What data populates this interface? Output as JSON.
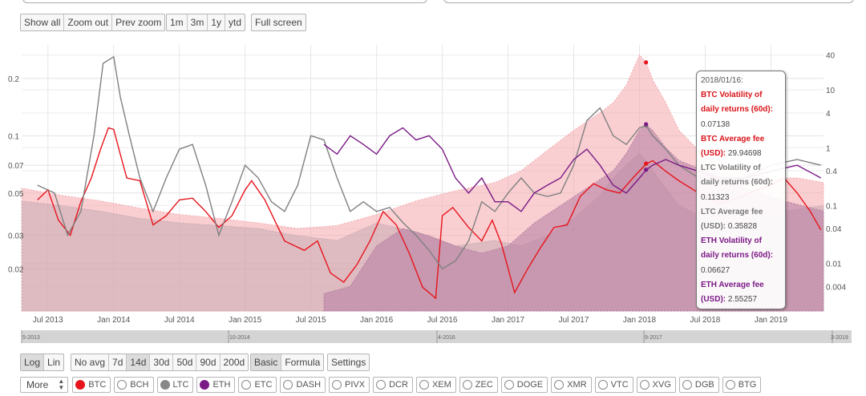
{
  "toolbar": {
    "zoom_buttons": [
      "Show all",
      "Zoom out",
      "Prev zoom"
    ],
    "range_buttons": [
      "1m",
      "3m",
      "1y",
      "ytd"
    ],
    "fullscreen": "Full screen"
  },
  "controls": {
    "scale_buttons": [
      "Log",
      "Lin"
    ],
    "scale_active": 0,
    "avg_buttons": [
      "No avg",
      "7d",
      "14d",
      "30d",
      "50d",
      "90d",
      "200d"
    ],
    "avg_active": 2,
    "mode_buttons": [
      "Basic",
      "Formula"
    ],
    "mode_active": 0,
    "settings": "Settings",
    "more": "More"
  },
  "coins": [
    {
      "label": "BTC",
      "active": true,
      "color": "#e8141c"
    },
    {
      "label": "BCH",
      "active": false,
      "color": ""
    },
    {
      "label": "LTC",
      "active": true,
      "color": "#888888"
    },
    {
      "label": "ETH",
      "active": true,
      "color": "#7a1a86"
    },
    {
      "label": "ETC",
      "active": false,
      "color": ""
    },
    {
      "label": "DASH",
      "active": false,
      "color": ""
    },
    {
      "label": "PIVX",
      "active": false,
      "color": ""
    },
    {
      "label": "DCR",
      "active": false,
      "color": ""
    },
    {
      "label": "XEM",
      "active": false,
      "color": ""
    },
    {
      "label": "ZEC",
      "active": false,
      "color": ""
    },
    {
      "label": "DOGE",
      "active": false,
      "color": ""
    },
    {
      "label": "XMR",
      "active": false,
      "color": ""
    },
    {
      "label": "VTC",
      "active": false,
      "color": ""
    },
    {
      "label": "XVG",
      "active": false,
      "color": ""
    },
    {
      "label": "DGB",
      "active": false,
      "color": ""
    },
    {
      "label": "BTG",
      "active": false,
      "color": ""
    }
  ],
  "tooltip": {
    "date": "2018/01/16:",
    "entries": [
      {
        "label": "BTC Volatility of daily returns (60d)",
        "value": "0.07138",
        "color": "red"
      },
      {
        "label": "BTC Average fee (USD)",
        "value": "29.94698",
        "color": "red"
      },
      {
        "label": "LTC Volatility of daily returns (60d)",
        "value": "0.11323",
        "color": "gray"
      },
      {
        "label": "LTC Average fee (USD)",
        "value": "0.35828",
        "color": "gray"
      },
      {
        "label": "ETH Volatility of daily returns (60d)",
        "value": "0.06627",
        "color": "purple"
      },
      {
        "label": "ETH Average fee (USD)",
        "value": "2.55257",
        "color": "purple"
      }
    ]
  },
  "chart_data": {
    "type": "line",
    "x_ticks": [
      "Jul 2013",
      "Jan 2014",
      "Jul 2014",
      "Jan 2015",
      "Jul 2015",
      "Jan 2016",
      "Jul 2016",
      "Jan 2017",
      "Jul 2017",
      "Jan 2018",
      "Jul 2018",
      "Jan 2019"
    ],
    "x_range": [
      2013.3,
      2019.4
    ],
    "y_left": {
      "scale": "log",
      "range": [
        0.012,
        0.3
      ],
      "ticks": [
        "0.2",
        "0.1",
        "0.07",
        "0.05",
        "0.03",
        "0.02"
      ]
    },
    "y_right": {
      "scale": "log",
      "range": [
        0.0015,
        60
      ],
      "ticks": [
        "40",
        "10",
        "4",
        "1",
        "0.4",
        "0.1",
        "0.04",
        "0.01",
        "0.004"
      ]
    },
    "navigator_labels": [
      "5-2013",
      "10-2014",
      "4-2016",
      "9-2017",
      "3-2019"
    ],
    "series": [
      {
        "name": "BTC Volatility of daily returns (60d)",
        "axis": "left",
        "style": "line",
        "color": "#e8141c",
        "x": [
          2013.42,
          2013.5,
          2013.58,
          2013.67,
          2013.75,
          2013.83,
          2013.9,
          2013.96,
          2014.0,
          2014.05,
          2014.1,
          2014.2,
          2014.3,
          2014.4,
          2014.5,
          2014.6,
          2014.7,
          2014.8,
          2014.9,
          2015.0,
          2015.05,
          2015.15,
          2015.3,
          2015.45,
          2015.55,
          2015.65,
          2015.75,
          2015.85,
          2015.95,
          2016.05,
          2016.15,
          2016.25,
          2016.35,
          2016.45,
          2016.5,
          2016.58,
          2016.7,
          2016.8,
          2016.88,
          2016.95,
          2017.05,
          2017.15,
          2017.25,
          2017.35,
          2017.45,
          2017.55,
          2017.65,
          2017.75,
          2017.85,
          2017.95,
          2018.05,
          2018.1,
          2018.2,
          2018.3,
          2018.45,
          2018.6,
          2018.75,
          2018.9,
          2019.0,
          2019.1,
          2019.2,
          2019.3,
          2019.38
        ],
        "y": [
          0.046,
          0.052,
          0.036,
          0.03,
          0.045,
          0.06,
          0.085,
          0.11,
          0.108,
          0.08,
          0.06,
          0.058,
          0.034,
          0.038,
          0.046,
          0.047,
          0.04,
          0.033,
          0.038,
          0.052,
          0.058,
          0.046,
          0.028,
          0.025,
          0.028,
          0.019,
          0.017,
          0.021,
          0.028,
          0.04,
          0.034,
          0.024,
          0.016,
          0.014,
          0.038,
          0.042,
          0.033,
          0.028,
          0.036,
          0.027,
          0.015,
          0.02,
          0.026,
          0.033,
          0.034,
          0.048,
          0.056,
          0.052,
          0.05,
          0.06,
          0.071,
          0.074,
          0.065,
          0.058,
          0.05,
          0.044,
          0.047,
          0.052,
          0.055,
          0.06,
          0.05,
          0.04,
          0.032
        ]
      },
      {
        "name": "BTC Average fee (USD)",
        "axis": "right",
        "style": "area",
        "color": "#f4a7ad",
        "x": [
          2013.3,
          2013.6,
          2013.9,
          2014.2,
          2014.5,
          2014.8,
          2015.1,
          2015.4,
          2015.7,
          2016.0,
          2016.3,
          2016.6,
          2016.9,
          2017.1,
          2017.3,
          2017.5,
          2017.7,
          2017.8,
          2017.9,
          2017.97,
          2018.0,
          2018.05,
          2018.1,
          2018.2,
          2018.3,
          2018.45,
          2018.6,
          2018.8,
          2019.0,
          2019.2,
          2019.4
        ],
        "y": [
          0.2,
          0.15,
          0.12,
          0.09,
          0.07,
          0.06,
          0.05,
          0.04,
          0.045,
          0.07,
          0.12,
          0.18,
          0.25,
          0.4,
          0.9,
          2.0,
          4.0,
          6.0,
          12.0,
          28.0,
          40.0,
          30.0,
          15.0,
          6.0,
          2.0,
          0.9,
          0.6,
          0.4,
          0.3,
          0.3,
          0.25
        ]
      },
      {
        "name": "LTC Volatility of daily returns (60d)",
        "axis": "left",
        "style": "line",
        "color": "#808080",
        "x": [
          2013.42,
          2013.55,
          2013.65,
          2013.75,
          2013.85,
          2013.92,
          2014.0,
          2014.05,
          2014.12,
          2014.2,
          2014.3,
          2014.4,
          2014.5,
          2014.6,
          2014.7,
          2014.8,
          2014.9,
          2015.0,
          2015.1,
          2015.2,
          2015.3,
          2015.4,
          2015.5,
          2015.6,
          2015.7,
          2015.8,
          2015.9,
          2016.0,
          2016.1,
          2016.2,
          2016.3,
          2016.4,
          2016.5,
          2016.6,
          2016.7,
          2016.8,
          2016.9,
          2017.0,
          2017.1,
          2017.2,
          2017.3,
          2017.4,
          2017.5,
          2017.6,
          2017.7,
          2017.8,
          2017.9,
          2018.0,
          2018.05,
          2018.1,
          2018.2,
          2018.3,
          2018.45,
          2018.6,
          2018.8,
          2019.0,
          2019.2,
          2019.38
        ],
        "y": [
          0.055,
          0.05,
          0.03,
          0.04,
          0.1,
          0.24,
          0.26,
          0.16,
          0.1,
          0.06,
          0.04,
          0.06,
          0.085,
          0.09,
          0.055,
          0.03,
          0.045,
          0.07,
          0.06,
          0.045,
          0.04,
          0.055,
          0.1,
          0.095,
          0.06,
          0.04,
          0.045,
          0.04,
          0.042,
          0.035,
          0.03,
          0.025,
          0.02,
          0.022,
          0.028,
          0.045,
          0.04,
          0.05,
          0.06,
          0.05,
          0.048,
          0.05,
          0.07,
          0.12,
          0.14,
          0.1,
          0.09,
          0.11,
          0.113,
          0.1,
          0.085,
          0.07,
          0.06,
          0.055,
          0.06,
          0.07,
          0.075,
          0.07
        ]
      },
      {
        "name": "ETH Volatility of daily returns (60d)",
        "axis": "left",
        "style": "line",
        "color": "#7a1a86",
        "x": [
          2015.6,
          2015.7,
          2015.8,
          2015.9,
          2016.0,
          2016.1,
          2016.2,
          2016.3,
          2016.4,
          2016.5,
          2016.6,
          2016.7,
          2016.8,
          2016.9,
          2017.0,
          2017.1,
          2017.2,
          2017.3,
          2017.4,
          2017.5,
          2017.6,
          2017.7,
          2017.8,
          2017.9,
          2018.0,
          2018.05,
          2018.1,
          2018.2,
          2018.3,
          2018.45,
          2018.6,
          2018.8,
          2019.0,
          2019.2,
          2019.38
        ],
        "y": [
          0.09,
          0.08,
          0.1,
          0.09,
          0.08,
          0.1,
          0.11,
          0.095,
          0.1,
          0.085,
          0.06,
          0.05,
          0.06,
          0.045,
          0.045,
          0.04,
          0.05,
          0.055,
          0.06,
          0.075,
          0.085,
          0.07,
          0.055,
          0.05,
          0.06,
          0.066,
          0.07,
          0.075,
          0.07,
          0.065,
          0.06,
          0.06,
          0.065,
          0.07,
          0.06
        ]
      },
      {
        "name": "LTC Average fee (USD)",
        "axis": "right",
        "style": "area",
        "color": "#c9aab2",
        "x": [
          2013.3,
          2013.6,
          2013.9,
          2014.2,
          2014.5,
          2014.8,
          2015.1,
          2015.4,
          2015.7,
          2016.0,
          2016.3,
          2016.6,
          2016.9,
          2017.1,
          2017.3,
          2017.5,
          2017.7,
          2017.8,
          2017.9,
          2018.0,
          2018.05,
          2018.1,
          2018.2,
          2018.3,
          2018.5,
          2018.8,
          2019.1,
          2019.4
        ],
        "y": [
          0.12,
          0.1,
          0.08,
          0.06,
          0.05,
          0.045,
          0.04,
          0.03,
          0.025,
          0.05,
          0.035,
          0.02,
          0.025,
          0.02,
          0.03,
          0.06,
          0.15,
          0.3,
          0.5,
          0.8,
          0.6,
          0.4,
          0.2,
          0.1,
          0.06,
          0.05,
          0.08,
          0.1
        ]
      },
      {
        "name": "ETH Average fee (USD)",
        "axis": "right",
        "style": "area",
        "color": "#b57ca0",
        "x": [
          2015.6,
          2015.8,
          2016.0,
          2016.2,
          2016.4,
          2016.6,
          2016.8,
          2017.0,
          2017.2,
          2017.4,
          2017.6,
          2017.8,
          2017.9,
          2018.0,
          2018.05,
          2018.1,
          2018.2,
          2018.3,
          2018.5,
          2018.8,
          2019.1,
          2019.4
        ],
        "y": [
          0.003,
          0.004,
          0.02,
          0.04,
          0.03,
          0.02,
          0.015,
          0.02,
          0.05,
          0.1,
          0.2,
          0.4,
          0.8,
          2.0,
          2.55,
          2.0,
          1.0,
          0.6,
          0.4,
          0.2,
          0.12,
          0.08
        ]
      }
    ]
  }
}
